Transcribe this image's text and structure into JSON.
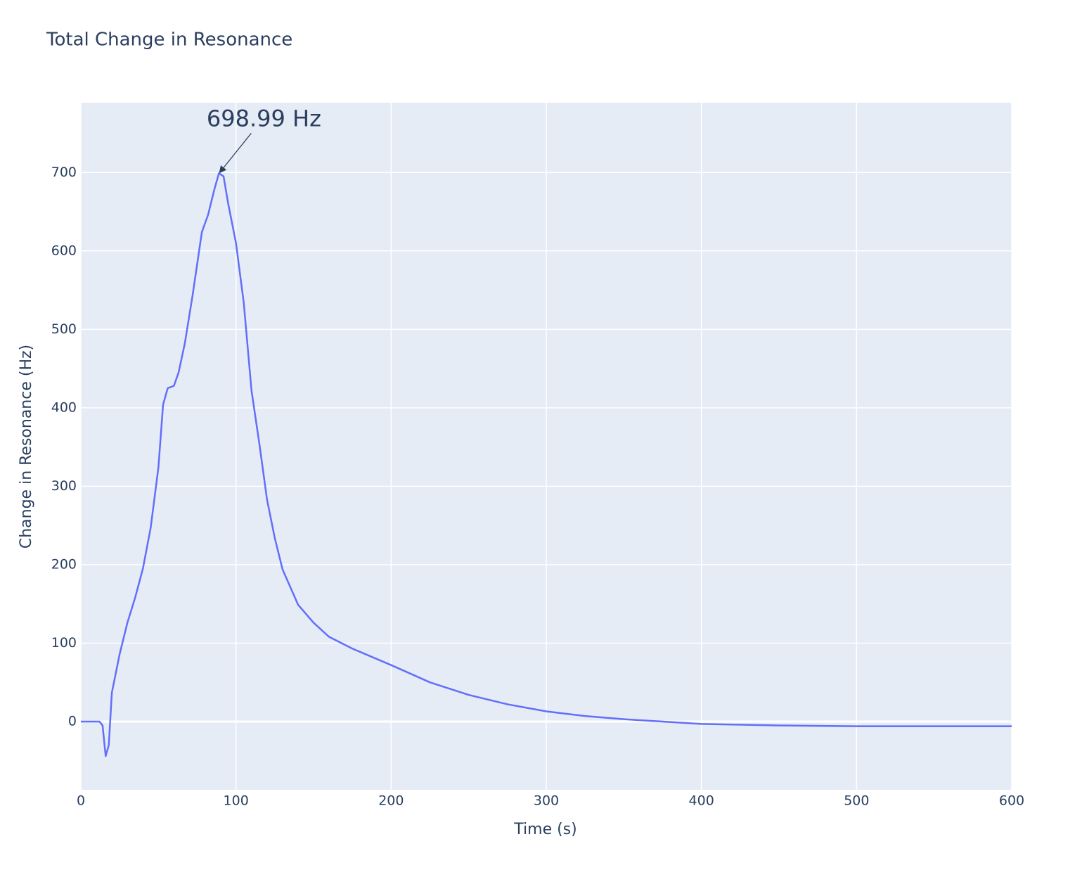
{
  "chart_data": {
    "type": "line",
    "title": "Total Change in Resonance",
    "x_label": "Time (s)",
    "y_label": "Change in Resonance (Hz)",
    "xlim": [
      0,
      600
    ],
    "ylim": [
      -87,
      789
    ],
    "xticks": [
      0,
      100,
      200,
      300,
      400,
      500,
      600
    ],
    "yticks": [
      0,
      100,
      200,
      300,
      400,
      500,
      600,
      700
    ],
    "grid": true,
    "background": "#e5ecf6",
    "annotation": {
      "text": "698.99 Hz",
      "x": 89,
      "y": 698.99
    },
    "series": [
      {
        "color": "#636efa",
        "x": [
          0,
          12,
          14,
          16,
          18,
          20,
          25,
          30,
          35,
          40,
          45,
          50,
          53,
          56,
          60,
          63,
          67,
          72,
          78,
          82,
          86,
          89,
          92,
          95,
          100,
          105,
          110,
          115,
          120,
          125,
          130,
          140,
          150,
          160,
          175,
          200,
          225,
          250,
          275,
          300,
          325,
          350,
          375,
          400,
          450,
          500,
          550,
          600
        ],
        "values": [
          0,
          0,
          -5,
          -44,
          -30,
          37,
          86,
          126,
          158,
          195,
          247,
          324,
          404,
          425,
          428,
          445,
          482,
          543,
          624,
          646,
          678,
          699,
          695,
          660,
          610,
          534,
          422,
          355,
          283,
          234,
          194,
          149,
          126,
          108,
          93,
          72,
          50,
          34,
          22,
          13,
          7,
          3,
          0,
          -3,
          -5,
          -6,
          -6,
          -6
        ]
      }
    ]
  }
}
